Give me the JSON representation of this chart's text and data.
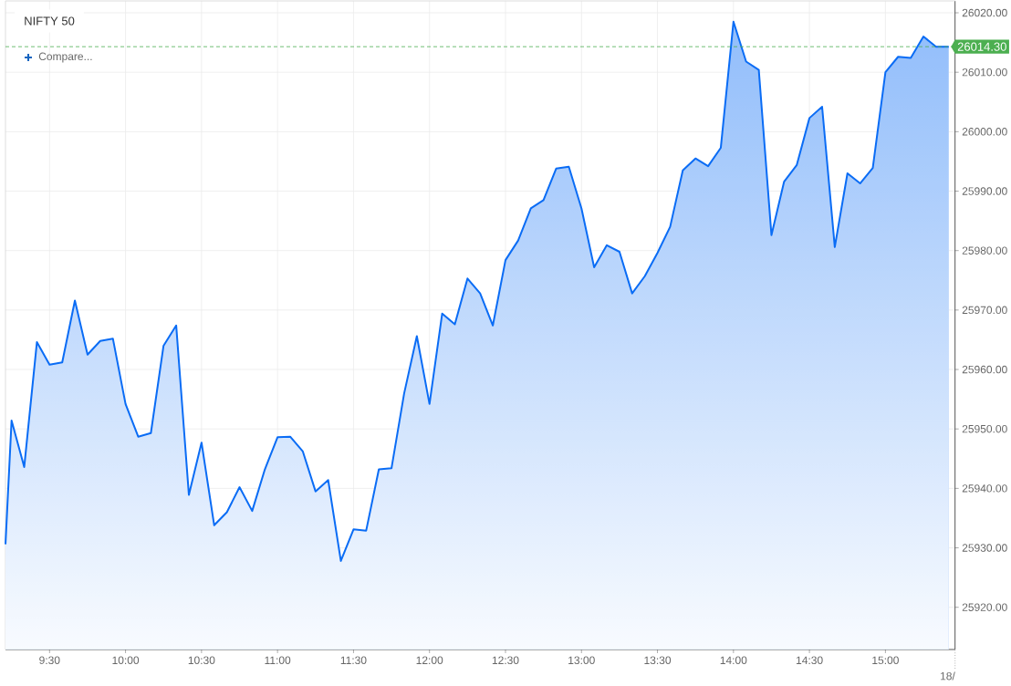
{
  "chart_data": {
    "type": "area",
    "title": "NIFTY 50",
    "annotations": [
      "Compare...",
      "18/"
    ],
    "x": [
      9.21,
      9.25,
      9.3333,
      9.4167,
      9.5,
      9.5833,
      9.6667,
      9.75,
      9.8333,
      9.9167,
      10,
      10.0833,
      10.1667,
      10.25,
      10.3333,
      10.4167,
      10.5,
      10.5833,
      10.6667,
      10.75,
      10.8333,
      10.9167,
      11,
      11.0833,
      11.1667,
      11.25,
      11.3333,
      11.4167,
      11.5,
      11.5833,
      11.6667,
      11.75,
      11.8333,
      11.9167,
      12,
      12.0833,
      12.1667,
      12.25,
      12.3333,
      12.4167,
      12.5,
      12.5833,
      12.6667,
      12.75,
      12.8333,
      12.9167,
      13,
      13.0833,
      13.1667,
      13.25,
      13.3333,
      13.4167,
      13.5,
      13.5833,
      13.6667,
      13.75,
      13.8333,
      13.9167,
      14,
      14.0833,
      14.1667,
      14.25,
      14.3333,
      14.4167,
      14.5,
      14.5833,
      14.6667,
      14.75,
      14.8333,
      14.9167,
      15,
      15.0833,
      15.1667,
      15.25,
      15.3333,
      15.4167
    ],
    "series": [
      {
        "color": "#0a6cf5",
        "values": [
          25930.6,
          25951.4,
          25943.6,
          25964.6,
          25960.8,
          25961.2,
          25971.6,
          25962.5,
          25964.8,
          25965.2,
          25954.2,
          25948.7,
          25949.3,
          25964.0,
          25967.4,
          25938.9,
          25947.7,
          25933.8,
          25936.0,
          25940.2,
          25936.2,
          25943.2,
          25948.6,
          25948.7,
          25946.2,
          25939.5,
          25941.4,
          25927.8,
          25933.1,
          25932.9,
          25943.2,
          25943.4,
          25956.0,
          25965.6,
          25954.2,
          25969.4,
          25967.6,
          25975.3,
          25972.8,
          25967.4,
          25978.4,
          25981.7,
          25987.1,
          25988.5,
          25993.8,
          25994.1,
          25987.1,
          25977.2,
          25980.9,
          25979.8,
          25972.8,
          25975.7,
          25979.6,
          25984.0,
          25993.5,
          25995.5,
          25994.2,
          25997.3,
          26018.5,
          26011.8,
          26010.4,
          25982.6,
          25991.6,
          25994.4,
          26002.3,
          26004.2,
          25980.6,
          25993.0,
          25991.3,
          25993.9,
          26010.0,
          26012.6,
          26012.4,
          26016.0,
          26014.3,
          26014.3
        ]
      }
    ],
    "xlim": [
      9.21,
      15.458
    ],
    "ylim": [
      25912.9,
      26022.0
    ],
    "xticks": [
      {
        "value": 9.5,
        "label": "9:30"
      },
      {
        "value": 10,
        "label": "10:00"
      },
      {
        "value": 10.5,
        "label": "10:30"
      },
      {
        "value": 11,
        "label": "11:00"
      },
      {
        "value": 11.5,
        "label": "11:30"
      },
      {
        "value": 12,
        "label": "12:00"
      },
      {
        "value": 12.5,
        "label": "12:30"
      },
      {
        "value": 13,
        "label": "13:00"
      },
      {
        "value": 13.5,
        "label": "13:30"
      },
      {
        "value": 14,
        "label": "14:00"
      },
      {
        "value": 14.5,
        "label": "14:30"
      },
      {
        "value": 15,
        "label": "15:00"
      }
    ],
    "yticks": [
      {
        "value": 25920,
        "label": "25920.00"
      },
      {
        "value": 25930,
        "label": "25930.00"
      },
      {
        "value": 25940,
        "label": "25940.00"
      },
      {
        "value": 25950,
        "label": "25950.00"
      },
      {
        "value": 25960,
        "label": "25960.00"
      },
      {
        "value": 25970,
        "label": "25970.00"
      },
      {
        "value": 25980,
        "label": "25980.00"
      },
      {
        "value": 25990,
        "label": "25990.00"
      },
      {
        "value": 26000,
        "label": "26000.00"
      },
      {
        "value": 26010,
        "label": "26010.00"
      },
      {
        "value": 26020,
        "label": "26020.00"
      }
    ],
    "grid": true,
    "ref_lines": [
      {
        "axis": "y",
        "value": 26014.3,
        "label": "26014.30",
        "color": "#4caf50",
        "line_style": "dashed"
      }
    ]
  }
}
